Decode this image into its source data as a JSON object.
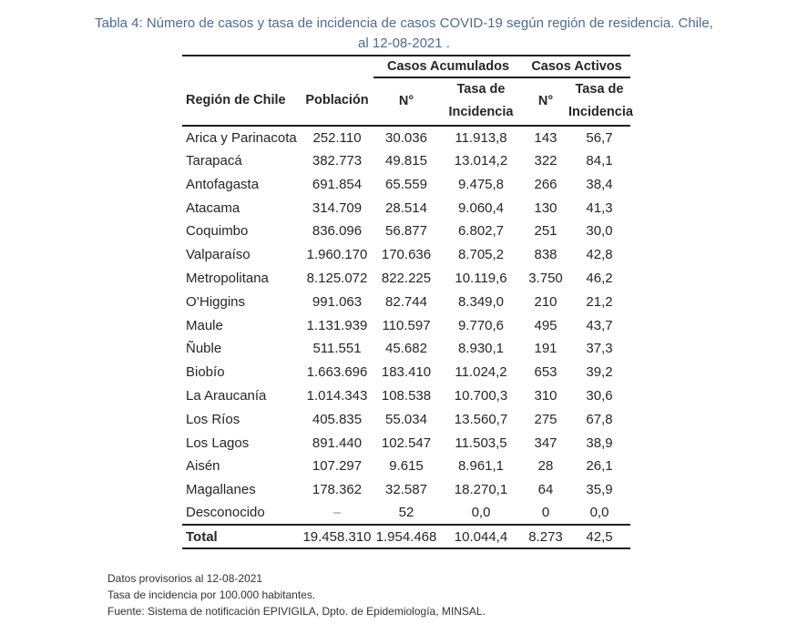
{
  "title": {
    "line1": "Tabla 4: Número de casos y tasa de incidencia de casos COVID-19 según región de residencia. Chile,",
    "line2": "al 12-08-2021 ."
  },
  "colors": {
    "title_text": "#4d6d8e",
    "body_text": "#262626",
    "rule": "#1f1f1f",
    "background": "#ffffff"
  },
  "table": {
    "group_headers": [
      "Casos Acumulados",
      "Casos Activos"
    ],
    "columns": [
      "Región de Chile",
      "Población",
      "N°",
      "Tasa de Incidencia",
      "N°",
      "Tasa de Incidencia"
    ],
    "rows": [
      [
        "Arica y Parinacota",
        "252.110",
        "30.036",
        "11.913,8",
        "143",
        "56,7"
      ],
      [
        "Tarapacá",
        "382.773",
        "49.815",
        "13.014,2",
        "322",
        "84,1"
      ],
      [
        "Antofagasta",
        "691.854",
        "65.559",
        "9.475,8",
        "266",
        "38,4"
      ],
      [
        "Atacama",
        "314.709",
        "28.514",
        "9.060,4",
        "130",
        "41,3"
      ],
      [
        "Coquimbo",
        "836.096",
        "56.877",
        "6.802,7",
        "251",
        "30,0"
      ],
      [
        "Valparaíso",
        "1.960.170",
        "170.636",
        "8.705,2",
        "838",
        "42,8"
      ],
      [
        "Metropolitana",
        "8.125.072",
        "822.225",
        "10.119,6",
        "3.750",
        "46,2"
      ],
      [
        "O’Higgins",
        "991.063",
        "82.744",
        "8.349,0",
        "210",
        "21,2"
      ],
      [
        "Maule",
        "1.131.939",
        "110.597",
        "9.770,6",
        "495",
        "43,7"
      ],
      [
        "Ñuble",
        "511.551",
        "45.682",
        "8.930,1",
        "191",
        "37,3"
      ],
      [
        "Biobío",
        "1.663.696",
        "183.410",
        "11.024,2",
        "653",
        "39,2"
      ],
      [
        "La Araucanía",
        "1.014.343",
        "108.538",
        "10.700,3",
        "310",
        "30,6"
      ],
      [
        "Los Ríos",
        "405.835",
        "55.034",
        "13.560,7",
        "275",
        "67,8"
      ],
      [
        "Los Lagos",
        "891.440",
        "102.547",
        "11.503,5",
        "347",
        "38,9"
      ],
      [
        "Aisén",
        "107.297",
        "9.615",
        "8.961,1",
        "28",
        "26,1"
      ],
      [
        "Magallanes",
        "178.362",
        "32.587",
        "18.270,1",
        "64",
        "35,9"
      ],
      [
        "Desconocido",
        "–",
        "52",
        "0,0",
        "0",
        "0,0"
      ]
    ],
    "total": [
      "Total",
      "19.458.310",
      "1.954.468",
      "10.044,4",
      "8.273",
      "42,5"
    ]
  },
  "footnotes": [
    "Datos provisorios al 12-08-2021",
    "Tasa de incidencia por 100.000 habitantes.",
    "Fuente: Sistema de notificación EPIVIGILA, Dpto. de Epidemiología, MINSAL."
  ]
}
